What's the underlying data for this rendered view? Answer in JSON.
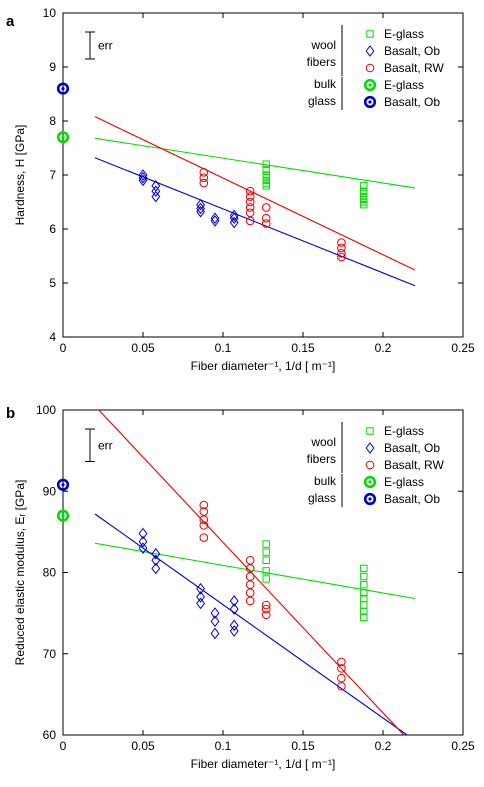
{
  "chart_data": [
    {
      "panel_label": "a",
      "type": "scatter",
      "xlabel": "Fiber diameter⁻¹, 1/d [  m⁻¹]",
      "ylabel": "Hardness, H [GPa]",
      "xlim": [
        0,
        0.25
      ],
      "ylim": [
        4,
        10
      ],
      "x_ticks": [
        "0",
        "0.05",
        "0.1",
        "0.15",
        "0.2",
        "0.25"
      ],
      "y_ticks": [
        "4",
        "5",
        "6",
        "7",
        "8",
        "9",
        "10"
      ],
      "err_label": "err",
      "err_value": 0.5,
      "legend": {
        "placement": "top-right",
        "group_wool_line1": "wool",
        "group_wool_line2": "fibers",
        "group_bulk_line1": "bulk",
        "group_bulk_line2": "glass",
        "entries": [
          "E-glass",
          "Basalt, Ob",
          "Basalt, RW",
          "E-glass",
          "Basalt, Ob"
        ]
      },
      "series": [
        {
          "name": "E-glass",
          "group": "wool fibers",
          "marker": "square",
          "color": "#00dd00",
          "points": [
            [
              0.127,
              7.2
            ],
            [
              0.127,
              7.1
            ],
            [
              0.127,
              7.0
            ],
            [
              0.127,
              6.95
            ],
            [
              0.127,
              6.9
            ],
            [
              0.127,
              6.85
            ],
            [
              0.127,
              6.8
            ],
            [
              0.188,
              6.8
            ],
            [
              0.188,
              6.7
            ],
            [
              0.188,
              6.65
            ],
            [
              0.188,
              6.6
            ],
            [
              0.188,
              6.55
            ],
            [
              0.188,
              6.5
            ],
            [
              0.188,
              6.45
            ]
          ]
        },
        {
          "name": "Basalt, Ob",
          "group": "wool fibers",
          "marker": "diamond",
          "color": "#0000cc",
          "points": [
            [
              0.05,
              7.0
            ],
            [
              0.05,
              6.95
            ],
            [
              0.05,
              6.9
            ],
            [
              0.058,
              6.8
            ],
            [
              0.058,
              6.7
            ],
            [
              0.058,
              6.6
            ],
            [
              0.086,
              6.45
            ],
            [
              0.086,
              6.38
            ],
            [
              0.086,
              6.32
            ],
            [
              0.095,
              6.2
            ],
            [
              0.095,
              6.15
            ],
            [
              0.107,
              6.25
            ],
            [
              0.107,
              6.2
            ],
            [
              0.107,
              6.12
            ]
          ]
        },
        {
          "name": "Basalt, RW",
          "group": "wool fibers",
          "marker": "circle",
          "color": "#ee0000",
          "points": [
            [
              0.088,
              7.05
            ],
            [
              0.088,
              6.95
            ],
            [
              0.088,
              6.85
            ],
            [
              0.117,
              6.7
            ],
            [
              0.117,
              6.6
            ],
            [
              0.117,
              6.5
            ],
            [
              0.117,
              6.4
            ],
            [
              0.117,
              6.3
            ],
            [
              0.117,
              6.15
            ],
            [
              0.127,
              6.4
            ],
            [
              0.127,
              6.2
            ],
            [
              0.127,
              6.1
            ],
            [
              0.174,
              5.75
            ],
            [
              0.174,
              5.65
            ],
            [
              0.174,
              5.55
            ],
            [
              0.174,
              5.48
            ]
          ]
        },
        {
          "name": "E-glass",
          "group": "bulk glass",
          "marker": "filled-circle",
          "color": "#00dd00",
          "points": [
            [
              0,
              7.7
            ]
          ]
        },
        {
          "name": "Basalt, Ob",
          "group": "bulk glass",
          "marker": "filled-circle",
          "color": "#0000cc",
          "points": [
            [
              0,
              8.6
            ]
          ]
        }
      ],
      "fit_lines": [
        {
          "color": "#00dd00",
          "x": [
            0.02,
            0.22
          ],
          "y": [
            7.68,
            6.76
          ]
        },
        {
          "color": "#0000cc",
          "x": [
            0.02,
            0.22
          ],
          "y": [
            7.32,
            4.95
          ]
        },
        {
          "color": "#ee0000",
          "x": [
            0.02,
            0.22
          ],
          "y": [
            8.08,
            5.24
          ]
        }
      ]
    },
    {
      "panel_label": "b",
      "type": "scatter",
      "xlabel": "Fiber diameter⁻¹, 1/d [  m⁻¹]",
      "ylabel": "Reduced elastic modulus, Eᵣ [GPa]",
      "xlim": [
        0,
        0.25
      ],
      "ylim": [
        60,
        100
      ],
      "x_ticks": [
        "0",
        "0.05",
        "0.1",
        "0.15",
        "0.2",
        "0.25"
      ],
      "y_ticks": [
        "60",
        "70",
        "80",
        "90",
        "100"
      ],
      "err_label": "err",
      "err_value": 4,
      "legend": {
        "placement": "top-right",
        "group_wool_line1": "wool",
        "group_wool_line2": "fibers",
        "group_bulk_line1": "bulk",
        "group_bulk_line2": "glass",
        "entries": [
          "E-glass",
          "Basalt, Ob",
          "Basalt, RW",
          "E-glass",
          "Basalt, Ob"
        ]
      },
      "series": [
        {
          "name": "E-glass",
          "group": "wool fibers",
          "marker": "square",
          "color": "#00dd00",
          "points": [
            [
              0.127,
              83.5
            ],
            [
              0.127,
              82.5
            ],
            [
              0.127,
              81.5
            ],
            [
              0.127,
              80.2
            ],
            [
              0.127,
              79.2
            ],
            [
              0.188,
              80.5
            ],
            [
              0.188,
              79.5
            ],
            [
              0.188,
              78.5
            ],
            [
              0.188,
              77.5
            ],
            [
              0.188,
              76.8
            ],
            [
              0.188,
              76.0
            ],
            [
              0.188,
              75.2
            ],
            [
              0.188,
              74.5
            ]
          ]
        },
        {
          "name": "Basalt, Ob",
          "group": "wool fibers",
          "marker": "diamond",
          "color": "#0000cc",
          "points": [
            [
              0.05,
              84.8
            ],
            [
              0.05,
              83.8
            ],
            [
              0.05,
              83.0
            ],
            [
              0.058,
              82.3
            ],
            [
              0.058,
              81.5
            ],
            [
              0.058,
              80.5
            ],
            [
              0.086,
              78.0
            ],
            [
              0.086,
              77.0
            ],
            [
              0.086,
              76.2
            ],
            [
              0.095,
              75.0
            ],
            [
              0.095,
              74.0
            ],
            [
              0.095,
              72.5
            ],
            [
              0.107,
              76.5
            ],
            [
              0.107,
              75.5
            ],
            [
              0.107,
              73.5
            ],
            [
              0.107,
              72.8
            ]
          ]
        },
        {
          "name": "Basalt, RW",
          "group": "wool fibers",
          "marker": "circle",
          "color": "#ee0000",
          "points": [
            [
              0.088,
              88.3
            ],
            [
              0.088,
              87.5
            ],
            [
              0.088,
              86.5
            ],
            [
              0.088,
              85.8
            ],
            [
              0.088,
              84.3
            ],
            [
              0.117,
              81.5
            ],
            [
              0.117,
              80.5
            ],
            [
              0.117,
              79.5
            ],
            [
              0.117,
              78.5
            ],
            [
              0.117,
              77.5
            ],
            [
              0.117,
              76.5
            ],
            [
              0.127,
              76.0
            ],
            [
              0.127,
              75.5
            ],
            [
              0.127,
              74.8
            ],
            [
              0.174,
              69.0
            ],
            [
              0.174,
              68.2
            ],
            [
              0.174,
              67.0
            ],
            [
              0.174,
              66.0
            ]
          ]
        },
        {
          "name": "E-glass",
          "group": "bulk glass",
          "marker": "filled-circle",
          "color": "#00dd00",
          "points": [
            [
              0,
              87.0
            ]
          ]
        },
        {
          "name": "Basalt, Ob",
          "group": "bulk glass",
          "marker": "filled-circle",
          "color": "#0000cc",
          "points": [
            [
              0,
              90.8
            ]
          ]
        }
      ],
      "fit_lines": [
        {
          "color": "#00dd00",
          "x": [
            0.02,
            0.22
          ],
          "y": [
            83.6,
            76.8
          ]
        },
        {
          "color": "#0000cc",
          "x": [
            0.02,
            0.215
          ],
          "y": [
            87.2,
            60
          ]
        },
        {
          "color": "#ee0000",
          "x": [
            0.02,
            0.213
          ],
          "y": [
            100.5,
            60
          ]
        }
      ]
    }
  ]
}
